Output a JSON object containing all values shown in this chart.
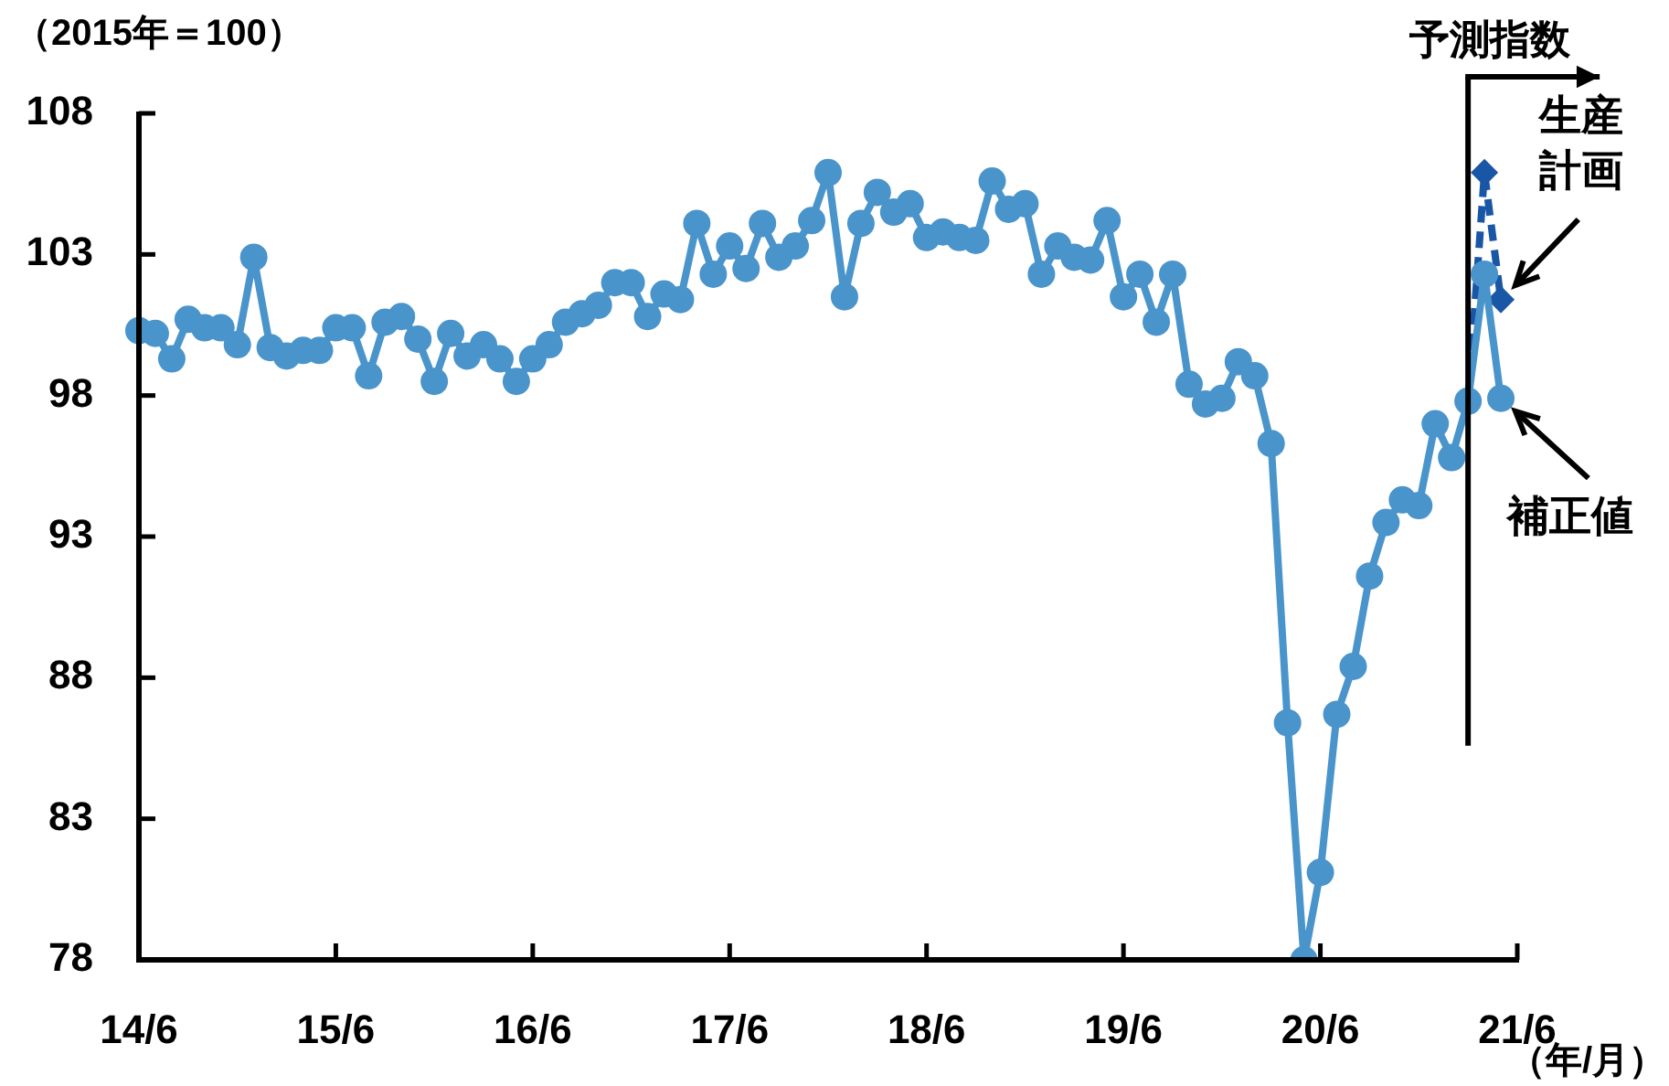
{
  "chart_data": {
    "type": "line",
    "ylabel": "（2015年＝100）",
    "xlabel": "（年/月）",
    "x": [
      "2014-06",
      "2014-07",
      "2014-08",
      "2014-09",
      "2014-10",
      "2014-11",
      "2014-12",
      "2015-01",
      "2015-02",
      "2015-03",
      "2015-04",
      "2015-05",
      "2015-06",
      "2015-07",
      "2015-08",
      "2015-09",
      "2015-10",
      "2015-11",
      "2015-12",
      "2016-01",
      "2016-02",
      "2016-03",
      "2016-04",
      "2016-05",
      "2016-06",
      "2016-07",
      "2016-08",
      "2016-09",
      "2016-10",
      "2016-11",
      "2016-12",
      "2017-01",
      "2017-02",
      "2017-03",
      "2017-04",
      "2017-05",
      "2017-06",
      "2017-07",
      "2017-08",
      "2017-09",
      "2017-10",
      "2017-11",
      "2017-12",
      "2018-01",
      "2018-02",
      "2018-03",
      "2018-04",
      "2018-05",
      "2018-06",
      "2018-07",
      "2018-08",
      "2018-09",
      "2018-10",
      "2018-11",
      "2018-12",
      "2019-01",
      "2019-02",
      "2019-03",
      "2019-04",
      "2019-05",
      "2019-06",
      "2019-07",
      "2019-08",
      "2019-09",
      "2019-10",
      "2019-11",
      "2019-12",
      "2020-01",
      "2020-02",
      "2020-03",
      "2020-04",
      "2020-05",
      "2020-06",
      "2020-07",
      "2020-08",
      "2020-09",
      "2020-10",
      "2020-11",
      "2020-12",
      "2021-01",
      "2021-02",
      "2021-03",
      "2021-04",
      "2021-05"
    ],
    "series": [
      {
        "color": "#4a94cc",
        "marker": "circle",
        "values": [
          100.3,
          100.2,
          99.3,
          100.7,
          100.4,
          100.4,
          99.8,
          102.9,
          99.7,
          99.4,
          99.6,
          99.6,
          100.4,
          100.4,
          98.7,
          100.6,
          100.8,
          100.0,
          98.5,
          100.2,
          99.4,
          99.8,
          99.3,
          98.5,
          99.3,
          99.8,
          100.6,
          100.9,
          101.2,
          102.0,
          102.0,
          100.8,
          101.6,
          101.4,
          104.1,
          102.3,
          103.3,
          102.5,
          104.1,
          102.9,
          103.3,
          104.2,
          105.9,
          101.5,
          104.1,
          105.2,
          104.5,
          104.8,
          103.6,
          103.8,
          103.6,
          103.5,
          105.6,
          104.6,
          104.8,
          102.3,
          103.3,
          102.9,
          102.8,
          104.2,
          101.5,
          102.3,
          100.6,
          102.3,
          98.4,
          97.7,
          97.9,
          99.2,
          98.7,
          96.3,
          86.4,
          78.0,
          81.1,
          86.7,
          88.4,
          91.6,
          93.5,
          94.3,
          94.1,
          97.0,
          95.8,
          97.8,
          102.3,
          97.9
        ]
      },
      {
        "x": [
          "2021-03",
          "2021-04",
          "2021-05"
        ],
        "color": "#1a56a6",
        "marker": "diamond",
        "line_style": "dashed",
        "values": [
          97.8,
          105.9,
          101.4
        ]
      }
    ],
    "xlim": [
      "2014-06",
      "2021-06"
    ],
    "xticks": [
      {
        "value": "2014-06",
        "label": "14/6"
      },
      {
        "value": "2015-06",
        "label": "15/6"
      },
      {
        "value": "2016-06",
        "label": "16/6"
      },
      {
        "value": "2017-06",
        "label": "17/6"
      },
      {
        "value": "2018-06",
        "label": "18/6"
      },
      {
        "value": "2019-06",
        "label": "19/6"
      },
      {
        "value": "2020-06",
        "label": "20/6"
      },
      {
        "value": "2021-06",
        "label": "21/6"
      }
    ],
    "ylim": [
      78,
      108
    ],
    "yticks": [
      78,
      83,
      88,
      93,
      98,
      103,
      108
    ],
    "ref_lines": [
      {
        "axis": "x",
        "value": "2021-03",
        "label": "予測指数"
      }
    ],
    "annotations": [
      {
        "text": "生産計画",
        "x": "2021-05",
        "y": 101.4
      },
      {
        "text": "補正値",
        "x": "2021-05",
        "y": 97.9
      }
    ]
  }
}
